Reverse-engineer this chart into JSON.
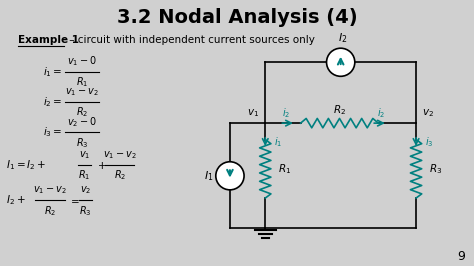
{
  "title": "3.2 Nodal Analysis (4)",
  "background_color": "#d0d0d0",
  "text_color": "#000000",
  "teal_color": "#008080",
  "page_number": "9",
  "example_label": "Example 1",
  "example_text": " – circuit with independent current sources only"
}
